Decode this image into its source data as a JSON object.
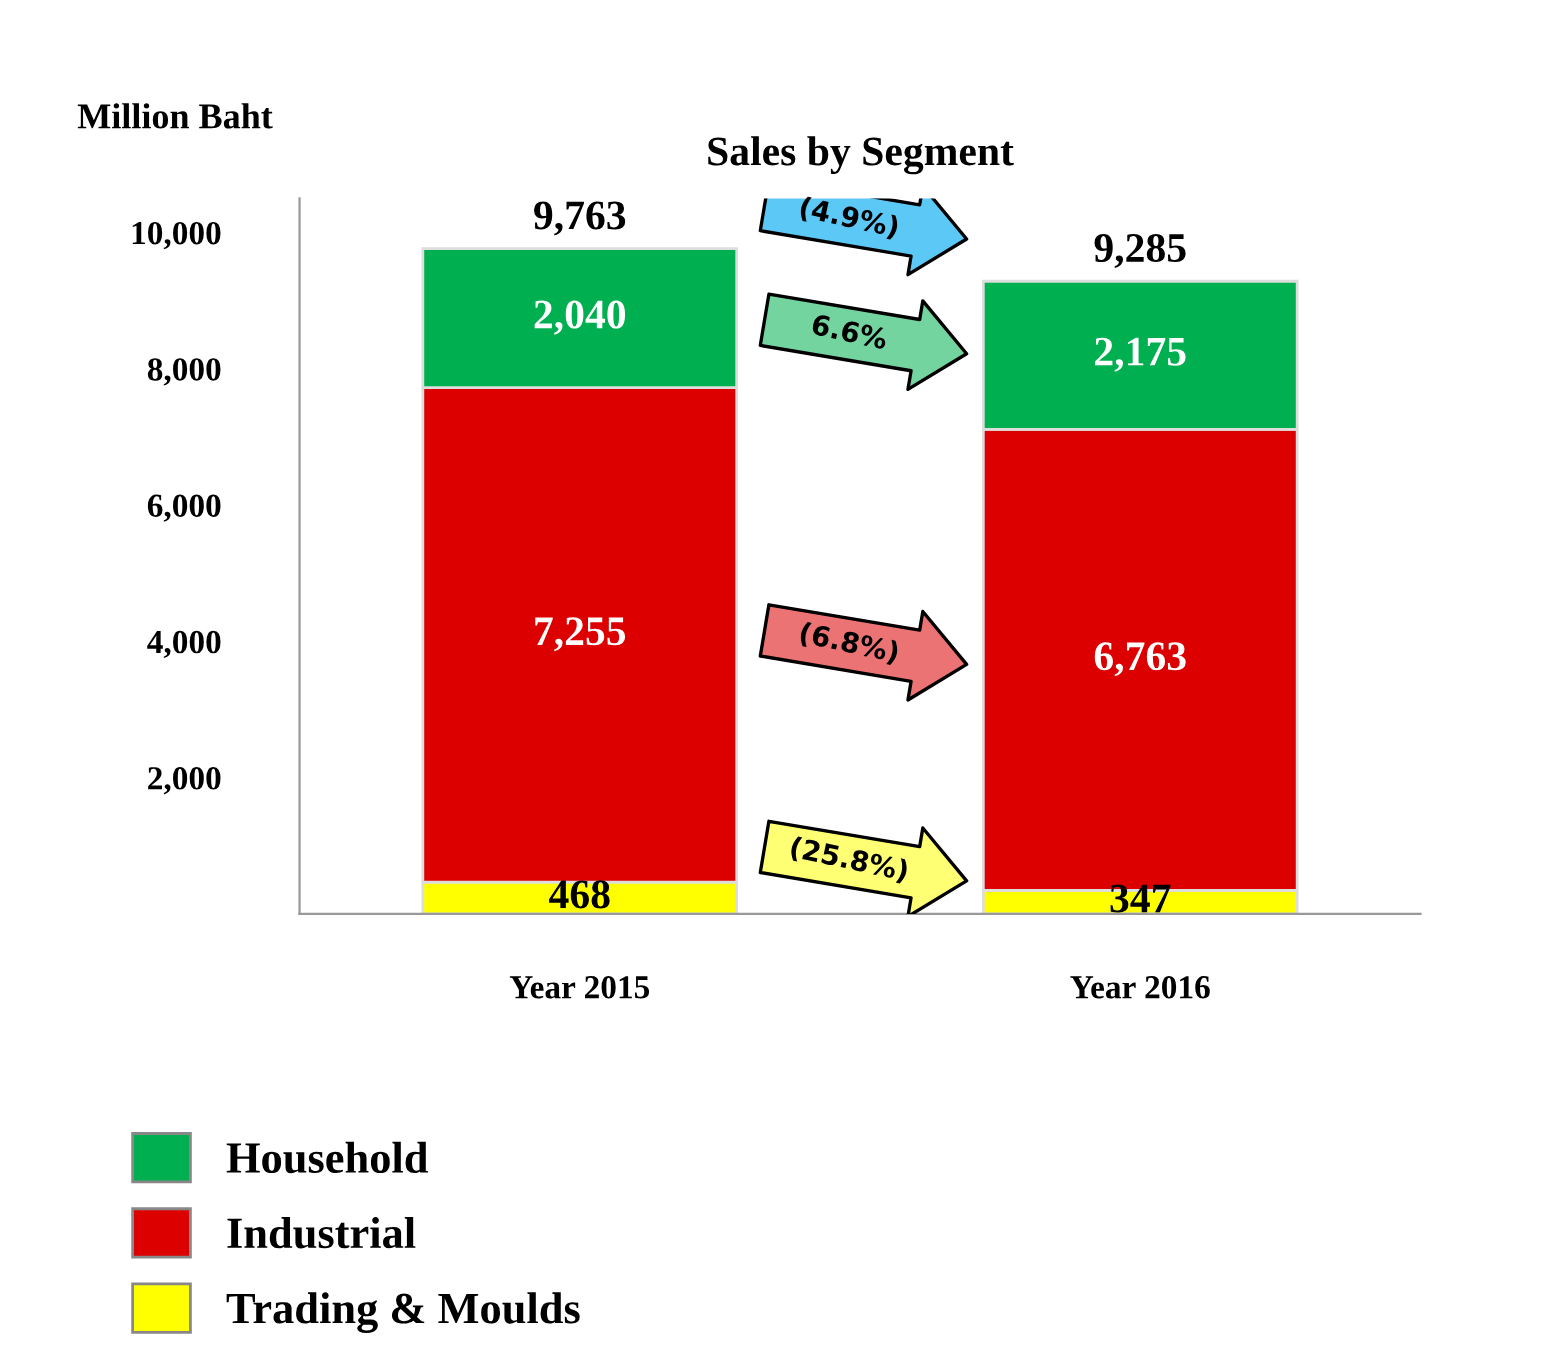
{
  "chart_data": {
    "type": "bar",
    "title": "Sales by Segment",
    "ylabel": "Million Baht",
    "stacked": true,
    "categories": [
      "Year 2015",
      "Year 2016"
    ],
    "series": [
      {
        "name": "Trading & Moulds",
        "color": "#ffff00",
        "values": [
          468,
          347
        ],
        "value_labels": [
          "468",
          "347"
        ]
      },
      {
        "name": "Industrial",
        "color": "#dd0000",
        "values": [
          7255,
          6763
        ],
        "value_labels": [
          "7,255",
          "6,763"
        ]
      },
      {
        "name": "Household",
        "color": "#00b050",
        "values": [
          2040,
          2175
        ],
        "value_labels": [
          "2,040",
          "2,175"
        ]
      }
    ],
    "totals": [
      "9,763",
      "9,285"
    ],
    "annotations": [
      "(4.9%)",
      "6.6%",
      "(6.8%)",
      "(25.8%)"
    ],
    "ylim": [
      0,
      10500
    ],
    "yticks": [
      {
        "value": 2000,
        "label": "2,000"
      },
      {
        "value": 4000,
        "label": "4,000"
      },
      {
        "value": 6000,
        "label": "6,000"
      },
      {
        "value": 8000,
        "label": "8,000"
      },
      {
        "value": 10000,
        "label": "10,000"
      }
    ],
    "grid": false,
    "legend": "bottom left"
  }
}
